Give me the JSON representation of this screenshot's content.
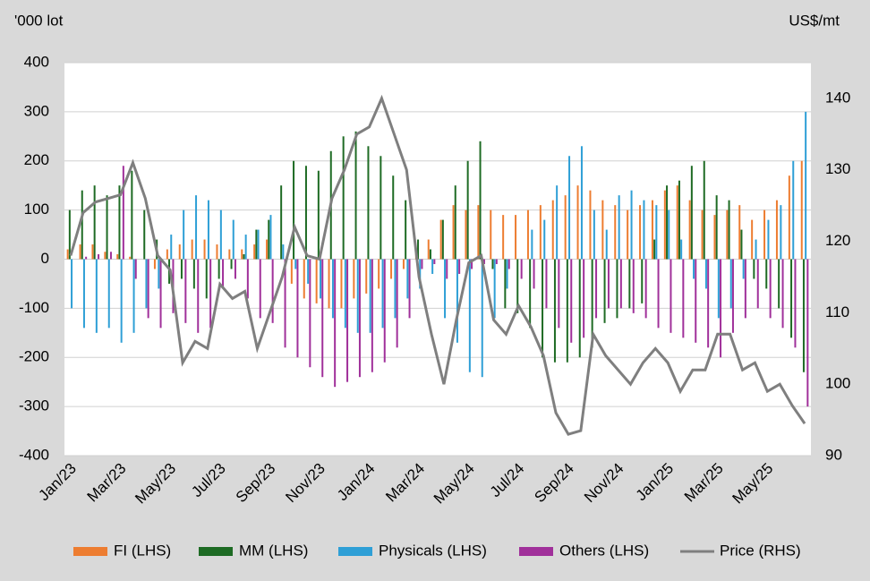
{
  "chart_data": {
    "type": "bar",
    "y_label": "'000 lot",
    "y2_label": "US$/mt",
    "categories": [
      "Jan/23",
      null,
      null,
      null,
      "Mar/23",
      null,
      null,
      null,
      "May/23",
      null,
      null,
      null,
      "Jul/23",
      null,
      null,
      null,
      "Sep/23",
      null,
      null,
      null,
      "Nov/23",
      null,
      null,
      null,
      "Jan/24",
      null,
      null,
      null,
      "Mar/24",
      null,
      null,
      null,
      "May/24",
      null,
      null,
      null,
      "Jul/24",
      null,
      null,
      null,
      "Sep/24",
      null,
      null,
      null,
      "Nov/24",
      null,
      null,
      null,
      "Jan/25",
      null,
      null,
      null,
      "Mar/25",
      null,
      null,
      null,
      "May/25",
      null,
      null,
      null
    ],
    "series": [
      {
        "name": "FI (LHS)",
        "color": "#ed7d31",
        "values": [
          20,
          30,
          30,
          15,
          10,
          5,
          0,
          -20,
          20,
          30,
          40,
          40,
          30,
          20,
          20,
          30,
          40,
          0,
          -50,
          -80,
          -90,
          -100,
          -100,
          -80,
          -70,
          -60,
          -40,
          -20,
          20,
          40,
          80,
          110,
          100,
          110,
          100,
          90,
          90,
          100,
          110,
          120,
          130,
          150,
          140,
          120,
          110,
          100,
          110,
          120,
          140,
          150,
          120,
          100,
          90,
          100,
          110,
          80,
          100,
          120,
          170,
          200
        ]
      },
      {
        "name": "MM (LHS)",
        "color": "#1e6b24",
        "values": [
          100,
          140,
          150,
          130,
          150,
          180,
          100,
          40,
          -50,
          -40,
          -60,
          -80,
          -40,
          -20,
          10,
          60,
          80,
          150,
          200,
          190,
          180,
          220,
          250,
          260,
          230,
          210,
          170,
          120,
          40,
          20,
          80,
          150,
          200,
          240,
          -20,
          -100,
          -110,
          -140,
          -200,
          -210,
          -210,
          -200,
          -180,
          -130,
          -120,
          -100,
          -90,
          40,
          150,
          160,
          190,
          200,
          130,
          120,
          60,
          -40,
          -60,
          -100,
          -160,
          -230
        ]
      },
      {
        "name": "Physicals (LHS)",
        "color": "#2e9fd6",
        "values": [
          -100,
          -140,
          -150,
          -140,
          -170,
          -150,
          -100,
          -60,
          50,
          100,
          130,
          120,
          100,
          80,
          50,
          60,
          90,
          30,
          -20,
          -50,
          -80,
          -120,
          -140,
          -150,
          -150,
          -140,
          -120,
          -80,
          -60,
          -30,
          -120,
          -170,
          -230,
          -240,
          -120,
          -60,
          0,
          60,
          80,
          150,
          210,
          230,
          100,
          60,
          130,
          140,
          120,
          110,
          100,
          40,
          -40,
          -60,
          -120,
          -100,
          -40,
          40,
          80,
          110,
          200,
          300
        ]
      },
      {
        "name": "Others (LHS)",
        "color": "#a0309a",
        "values": [
          0,
          5,
          10,
          15,
          190,
          -40,
          -120,
          -140,
          -110,
          -130,
          -150,
          -140,
          -60,
          -40,
          -80,
          -120,
          -130,
          -180,
          -200,
          -220,
          -240,
          -260,
          -250,
          -240,
          -230,
          -210,
          -180,
          -120,
          -20,
          -10,
          -40,
          -30,
          -20,
          -10,
          -10,
          -20,
          -40,
          -60,
          -100,
          -140,
          -170,
          -160,
          -120,
          -100,
          -100,
          -110,
          -120,
          -140,
          -150,
          -160,
          -170,
          -180,
          -200,
          -150,
          -120,
          -100,
          -120,
          -140,
          -180,
          -300
        ]
      },
      {
        "name": "Price (RHS)",
        "color": "#7f7f7f",
        "axis": "y2",
        "values": [
          118,
          124,
          125.5,
          126,
          126.5,
          131,
          126,
          118,
          116,
          103,
          106,
          105,
          114,
          112,
          113,
          105,
          110,
          115,
          122,
          118,
          117.5,
          126,
          130,
          135,
          136,
          140,
          135,
          130,
          115,
          107,
          100,
          109,
          117,
          118,
          109,
          107,
          111,
          108,
          104,
          96,
          93,
          93.5,
          107,
          104,
          102,
          100,
          103,
          105,
          103,
          99,
          102,
          102,
          107,
          107,
          102,
          103,
          99,
          100,
          97,
          94.5
        ]
      }
    ],
    "ylim": [
      -400,
      400
    ],
    "yticks": [
      -400,
      -300,
      -200,
      -100,
      0,
      100,
      200,
      300,
      400
    ],
    "y2lim": [
      90,
      145
    ],
    "y2ticks": [
      90,
      100,
      110,
      120,
      130,
      140
    ],
    "grid": true,
    "legend": "bottom"
  }
}
